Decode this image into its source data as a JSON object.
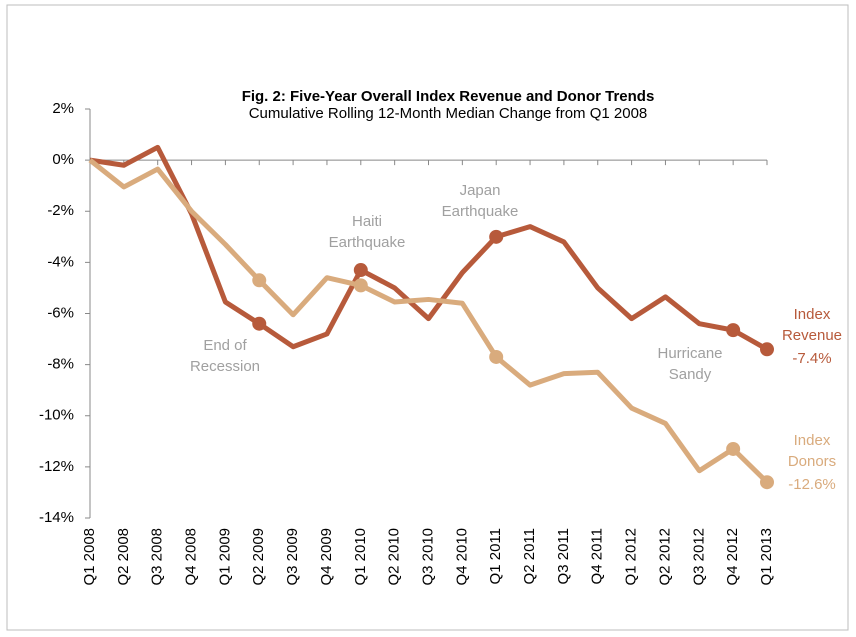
{
  "chart_data": {
    "type": "line",
    "title": "Fig. 2: Five-Year Overall Index Revenue and Donor Trends",
    "subtitle": "Cumulative Rolling 12-Month Median Change from Q1 2008",
    "categories": [
      "Q1 2008",
      "Q2 2008",
      "Q3 2008",
      "Q4 2008",
      "Q1 2009",
      "Q2 2009",
      "Q3 2009",
      "Q4 2009",
      "Q1 2010",
      "Q2 2010",
      "Q3 2010",
      "Q4 2010",
      "Q1 2011",
      "Q2 2011",
      "Q3 2011",
      "Q4 2011",
      "Q1 2012",
      "Q2 2012",
      "Q3 2012",
      "Q4 2012",
      "Q1 2013"
    ],
    "series": [
      {
        "name": "Index Revenue",
        "color": "#b75a3b",
        "values": [
          0,
          -0.2,
          0.5,
          -2.1,
          -5.55,
          -6.4,
          -7.3,
          -6.8,
          -4.3,
          -5.0,
          -6.2,
          -4.4,
          -3.0,
          -2.6,
          -3.2,
          -5.0,
          -6.2,
          -5.35,
          -6.4,
          -6.65,
          -7.4
        ],
        "value_labels": [
          null,
          null,
          null,
          null,
          null,
          null,
          null,
          null,
          null,
          null,
          null,
          null,
          null,
          null,
          null,
          null,
          null,
          null,
          null,
          null,
          "-7.4%"
        ]
      },
      {
        "name": "Index Donors",
        "color": "#d9ab7d",
        "values": [
          0,
          -1.05,
          -0.35,
          -2.0,
          -3.3,
          -4.7,
          -6.05,
          -4.6,
          -4.9,
          -5.55,
          -5.45,
          -5.6,
          -7.7,
          -8.8,
          -8.35,
          -8.3,
          -9.7,
          -10.3,
          -12.15,
          -11.3,
          -12.6
        ],
        "value_labels": [
          null,
          null,
          null,
          null,
          null,
          null,
          null,
          null,
          null,
          null,
          null,
          null,
          null,
          null,
          null,
          null,
          null,
          null,
          null,
          null,
          "-12.6%"
        ]
      }
    ],
    "markers": [
      5,
      8,
      12,
      19,
      20
    ],
    "annotations": [
      [
        "End of",
        "Recession"
      ],
      [
        "Haiti",
        "Earthquake"
      ],
      [
        "Japan",
        "Earthquake"
      ],
      [
        "Hurricane",
        "Sandy"
      ]
    ],
    "ylim": [
      -14,
      2
    ],
    "yticks": [
      {
        "value": -14,
        "label": "-14%"
      },
      {
        "value": -12,
        "label": "-12%"
      },
      {
        "value": -10,
        "label": "-10%"
      },
      {
        "value": -8,
        "label": "-8%"
      },
      {
        "value": -6,
        "label": "-6%"
      },
      {
        "value": -4,
        "label": "-4%"
      },
      {
        "value": -2,
        "label": "-2%"
      },
      {
        "value": 0,
        "label": "0%"
      },
      {
        "value": 2,
        "label": "2%"
      }
    ],
    "grid": false
  }
}
